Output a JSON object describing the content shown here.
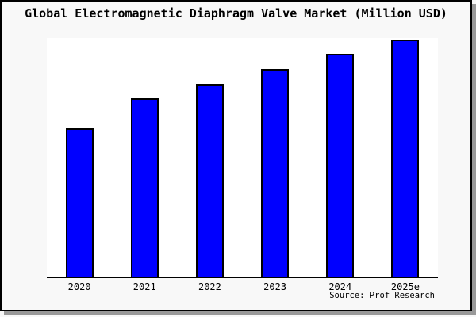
{
  "colors": {
    "bar_fill": "#0000ff",
    "bar_border": "#000000",
    "figure_bg": "#f8f8f8",
    "plot_bg": "#ffffff",
    "axis": "#000000",
    "shadow": "#999999",
    "text": "#000000"
  },
  "chart_data": {
    "type": "bar",
    "title": "Global Electromagnetic Diaphragm Valve Market (Million USD)",
    "categories": [
      "2020",
      "2021",
      "2022",
      "2023",
      "2024",
      "2025e"
    ],
    "values": [
      250,
      300,
      325,
      350,
      375,
      400
    ],
    "values_estimated_from_pixels": true,
    "unit": "Million USD",
    "xlabel": "",
    "ylabel": "",
    "ylim": [
      0,
      402
    ],
    "y_axis_visible": false,
    "grid": false,
    "legend": false,
    "source": "Source: Prof Research"
  }
}
